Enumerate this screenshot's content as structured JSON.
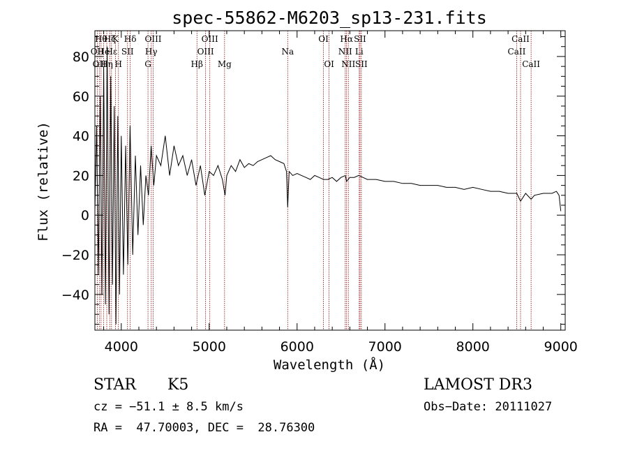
{
  "chart_data": {
    "type": "line",
    "title": "spec-55862-M6203_sp13-231.fits",
    "xlabel": "Wavelength (Å)",
    "ylabel": "Flux (relative)",
    "xlim": [
      3700,
      9050
    ],
    "ylim": [
      -58,
      93
    ],
    "x_ticks": [
      4000,
      5000,
      6000,
      7000,
      8000,
      9000
    ],
    "y_ticks": [
      -40,
      -20,
      0,
      20,
      40,
      60,
      80
    ],
    "series": [
      {
        "name": "spectrum",
        "x": [
          3700,
          3720,
          3740,
          3760,
          3780,
          3800,
          3820,
          3840,
          3860,
          3880,
          3900,
          3920,
          3940,
          3960,
          3980,
          4000,
          4025,
          4050,
          4075,
          4100,
          4130,
          4160,
          4190,
          4220,
          4250,
          4280,
          4310,
          4340,
          4370,
          4400,
          4450,
          4500,
          4550,
          4600,
          4650,
          4700,
          4750,
          4800,
          4850,
          4900,
          4950,
          5000,
          5050,
          5100,
          5150,
          5180,
          5200,
          5250,
          5300,
          5350,
          5400,
          5450,
          5500,
          5550,
          5600,
          5650,
          5700,
          5750,
          5800,
          5850,
          5880,
          5893,
          5910,
          5950,
          6000,
          6050,
          6100,
          6150,
          6200,
          6250,
          6300,
          6350,
          6400,
          6450,
          6500,
          6550,
          6563,
          6600,
          6650,
          6700,
          6750,
          6800,
          6900,
          7000,
          7100,
          7200,
          7300,
          7400,
          7500,
          7600,
          7700,
          7800,
          7900,
          8000,
          8100,
          8200,
          8300,
          8400,
          8500,
          8542,
          8600,
          8662,
          8700,
          8800,
          8900,
          8950,
          8980,
          9000
        ],
        "values": [
          2,
          45,
          -30,
          60,
          -40,
          75,
          -45,
          85,
          -50,
          70,
          -35,
          55,
          -55,
          50,
          -40,
          40,
          -30,
          35,
          -25,
          45,
          -20,
          30,
          -10,
          25,
          -5,
          20,
          10,
          35,
          15,
          30,
          25,
          40,
          20,
          35,
          25,
          30,
          20,
          28,
          15,
          25,
          10,
          22,
          20,
          25,
          18,
          10,
          20,
          25,
          22,
          28,
          24,
          26,
          25,
          27,
          28,
          29,
          30,
          28,
          27,
          26,
          22,
          4,
          22,
          20,
          21,
          20,
          19,
          18,
          20,
          19,
          18,
          18,
          19,
          17,
          19,
          20,
          17,
          19,
          19,
          20,
          19,
          18,
          18,
          17,
          17,
          16,
          16,
          15,
          15,
          15,
          14,
          14,
          13,
          14,
          13,
          12,
          12,
          11,
          11,
          7,
          11,
          8,
          10,
          11,
          11,
          12,
          10,
          2
        ]
      }
    ],
    "lines": [
      {
        "x": 3727,
        "label": "OII",
        "row": 1
      },
      {
        "x": 3750,
        "label": "OII",
        "row": 2
      },
      {
        "x": 3770,
        "label": "Hθ",
        "row": 0
      },
      {
        "x": 3798,
        "label": "He",
        "row": 1
      },
      {
        "x": 3835,
        "label": "Hη",
        "row": 2
      },
      {
        "x": 3869,
        "label": "Hζ",
        "row": 0
      },
      {
        "x": 3889,
        "label": "Hε",
        "row": 1
      },
      {
        "x": 3934,
        "label": "K",
        "row": 0
      },
      {
        "x": 3968,
        "label": "H",
        "row": 2
      },
      {
        "x": 4071,
        "label": "SII",
        "row": 1
      },
      {
        "x": 4102,
        "label": "Hδ",
        "row": 0
      },
      {
        "x": 4304,
        "label": "G",
        "row": 2
      },
      {
        "x": 4341,
        "label": "Hγ",
        "row": 1
      },
      {
        "x": 4363,
        "label": "OIII",
        "row": 0
      },
      {
        "x": 4861,
        "label": "Hβ",
        "row": 2
      },
      {
        "x": 4959,
        "label": "OIII",
        "row": 1
      },
      {
        "x": 5007,
        "label": "OIII",
        "row": 0
      },
      {
        "x": 5175,
        "label": "Mg",
        "row": 2
      },
      {
        "x": 5893,
        "label": "Na",
        "row": 1
      },
      {
        "x": 6300,
        "label": "OI",
        "row": 0
      },
      {
        "x": 6364,
        "label": "OI",
        "row": 2
      },
      {
        "x": 6548,
        "label": "NII",
        "row": 1
      },
      {
        "x": 6563,
        "label": "Hα",
        "row": 0
      },
      {
        "x": 6583,
        "label": "NII",
        "row": 2
      },
      {
        "x": 6707,
        "label": "Li",
        "row": 1
      },
      {
        "x": 6716,
        "label": "SII",
        "row": 0
      },
      {
        "x": 6731,
        "label": "SII",
        "row": 2
      },
      {
        "x": 8498,
        "label": "CaII",
        "row": 1
      },
      {
        "x": 8542,
        "label": "CaII",
        "row": 0
      },
      {
        "x": 8662,
        "label": "CaII",
        "row": 2
      }
    ],
    "colors": {
      "data_line": "#000000",
      "marker_line": "#8b0000",
      "axis": "#000000"
    }
  },
  "info": {
    "object_class": "STAR",
    "subclass": "K5",
    "survey": "LAMOST DR3",
    "cz": "cz = −51.1 ± 8.5 km/s",
    "obs_date": "Obs−Date: 20111027",
    "coords": "RA =  47.70003, DEC =  28.76300"
  }
}
